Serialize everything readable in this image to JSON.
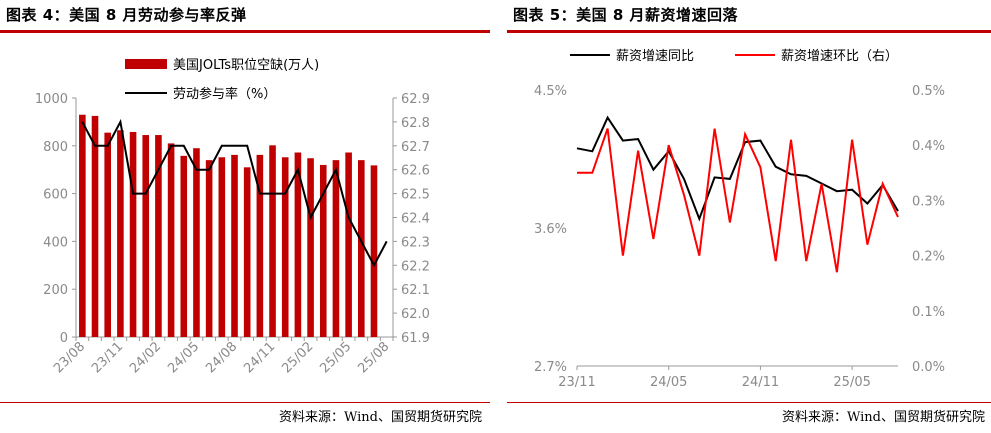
{
  "left": {
    "title": "图表 4：美国 8 月劳动参与率反弹",
    "source": "资料来源：Wind、国贸期货研究院",
    "chart_data": {
      "type": "bar+line",
      "categories": [
        "23/08",
        "23/09",
        "23/10",
        "23/11",
        "23/12",
        "24/01",
        "24/02",
        "24/03",
        "24/04",
        "24/05",
        "24/06",
        "24/07",
        "24/08",
        "24/09",
        "24/10",
        "24/11",
        "24/12",
        "25/01",
        "25/02",
        "25/03",
        "25/04",
        "25/05",
        "25/06",
        "25/07",
        "25/08"
      ],
      "x_tick_labels": [
        "23/08",
        "23/11",
        "24/02",
        "24/05",
        "24/08",
        "24/11",
        "25/02",
        "25/05",
        "25/08"
      ],
      "series": [
        {
          "name": "美国JOLTs职位空缺(万人)",
          "kind": "bar",
          "axis": "left",
          "color": "#c00000",
          "values": [
            930,
            925,
            855,
            865,
            858,
            845,
            845,
            810,
            758,
            790,
            740,
            752,
            762,
            710,
            762,
            802,
            752,
            772,
            748,
            720,
            740,
            772,
            740,
            718,
            null
          ]
        },
        {
          "name": "劳动参与率（%）",
          "kind": "line",
          "axis": "right",
          "color": "#000000",
          "values": [
            62.8,
            62.7,
            62.7,
            62.8,
            62.5,
            62.5,
            62.6,
            62.7,
            62.7,
            62.6,
            62.6,
            62.7,
            62.7,
            62.7,
            62.5,
            62.5,
            62.5,
            62.6,
            62.4,
            62.5,
            62.6,
            62.4,
            62.3,
            62.2,
            62.3
          ]
        }
      ],
      "ylim_left": [
        0,
        1000
      ],
      "yticks_left": [
        0,
        200,
        400,
        600,
        800,
        1000
      ],
      "ylim_right": [
        61.9,
        62.9
      ],
      "yticks_right": [
        61.9,
        62.0,
        62.1,
        62.2,
        62.3,
        62.4,
        62.5,
        62.6,
        62.7,
        62.8,
        62.9
      ],
      "legend_placement": "top-center"
    }
  },
  "right": {
    "title": "图表 5：美国 8 月薪资增速回落",
    "source": "资料来源：Wind、国贸期货研究院",
    "chart_data": {
      "type": "line",
      "categories": [
        "23/11",
        "23/12",
        "24/01",
        "24/02",
        "24/03",
        "24/04",
        "24/05",
        "24/06",
        "24/07",
        "24/08",
        "24/09",
        "24/10",
        "24/11",
        "24/12",
        "25/01",
        "25/02",
        "25/03",
        "25/04",
        "25/05",
        "25/06",
        "25/07",
        "25/08"
      ],
      "x_tick_labels": [
        "23/11",
        "24/05",
        "24/11",
        "25/05"
      ],
      "series": [
        {
          "name": "薪资增速同比",
          "axis": "left",
          "color": "#000000",
          "values": [
            4.12,
            4.1,
            4.32,
            4.17,
            4.18,
            3.98,
            4.1,
            3.92,
            3.66,
            3.93,
            3.92,
            4.16,
            4.17,
            4.0,
            3.95,
            3.94,
            3.89,
            3.84,
            3.85,
            3.76,
            3.88,
            3.71
          ]
        },
        {
          "name": "薪资增速环比（右）",
          "axis": "right",
          "color": "#ff0000",
          "values": [
            0.35,
            0.35,
            0.43,
            0.2,
            0.39,
            0.23,
            0.4,
            0.31,
            0.2,
            0.43,
            0.26,
            0.42,
            0.36,
            0.19,
            0.41,
            0.19,
            0.33,
            0.17,
            0.41,
            0.22,
            0.33,
            0.27
          ]
        }
      ],
      "ylim_left": [
        2.7,
        4.5
      ],
      "yticks_left": [
        "2.7%",
        "3.6%",
        "4.5%"
      ],
      "ylim_right": [
        0.0,
        0.5
      ],
      "yticks_right": [
        "0.0%",
        "0.1%",
        "0.2%",
        "0.3%",
        "0.4%",
        "0.5%"
      ],
      "legend_placement": "top"
    }
  }
}
